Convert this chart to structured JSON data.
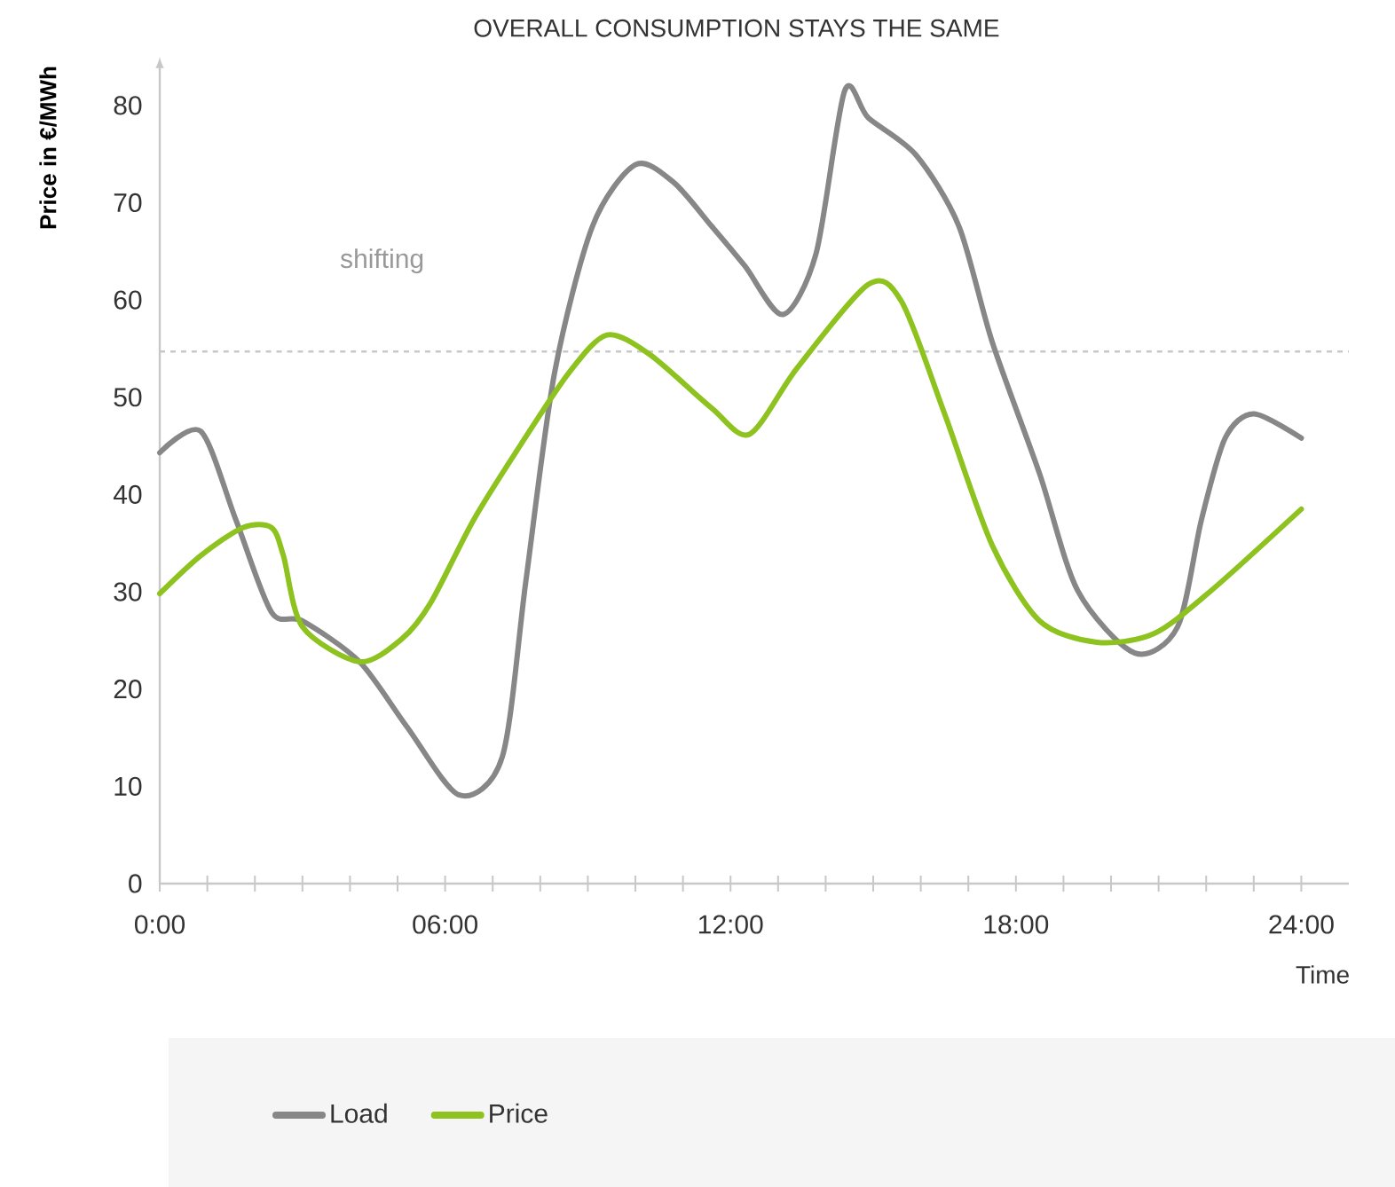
{
  "chart_data": {
    "type": "line",
    "title": "OVERALL CONSUMPTION STAYS THE SAME",
    "xlabel": "Time",
    "ylabel": "Price in €/MWh",
    "annotations": [
      "shifting"
    ],
    "xlim": [
      0,
      25
    ],
    "ylim": [
      0,
      85
    ],
    "xticks": [
      {
        "value": 0,
        "label": "0:00"
      },
      {
        "value": 1,
        "label": null
      },
      {
        "value": 2,
        "label": null
      },
      {
        "value": 3,
        "label": null
      },
      {
        "value": 4,
        "label": null
      },
      {
        "value": 5,
        "label": null
      },
      {
        "value": 6,
        "label": "06:00"
      },
      {
        "value": 7,
        "label": null
      },
      {
        "value": 8,
        "label": null
      },
      {
        "value": 9,
        "label": null
      },
      {
        "value": 10,
        "label": null
      },
      {
        "value": 11,
        "label": null
      },
      {
        "value": 12,
        "label": "12:00"
      },
      {
        "value": 13,
        "label": null
      },
      {
        "value": 14,
        "label": null
      },
      {
        "value": 15,
        "label": null
      },
      {
        "value": 16,
        "label": null
      },
      {
        "value": 17,
        "label": null
      },
      {
        "value": 18,
        "label": "18:00"
      },
      {
        "value": 19,
        "label": null
      },
      {
        "value": 20,
        "label": null
      },
      {
        "value": 21,
        "label": null
      },
      {
        "value": 22,
        "label": null
      },
      {
        "value": 23,
        "label": null
      },
      {
        "value": 24,
        "label": "24:00"
      }
    ],
    "yticks": [
      0,
      10,
      20,
      30,
      40,
      50,
      60,
      70,
      80
    ],
    "legend": "bottom",
    "ref_lines": [
      {
        "axis": "y",
        "value": 54.7,
        "color": "#c8c8c8",
        "line_style": "dashed"
      }
    ],
    "series": [
      {
        "name": "Load",
        "color": "#878787",
        "x": [
          0,
          0.86,
          1.6,
          2.35,
          3.0,
          4.2,
          5.2,
          6.3,
          7.2,
          7.7,
          8.3,
          9.1,
          10.0,
          10.8,
          11.6,
          12.3,
          13.1,
          13.8,
          14.4,
          14.9,
          15.9,
          16.8,
          17.5,
          18.5,
          19.3,
          20.5,
          21.4,
          21.9,
          22.4,
          23.0,
          24
        ],
        "values": [
          44.3,
          46.5,
          37.4,
          27.9,
          27.0,
          22.8,
          16.1,
          9.1,
          13.0,
          31.2,
          52.5,
          67.6,
          73.9,
          72.1,
          67.6,
          63.5,
          58.5,
          64.8,
          81.5,
          78.7,
          74.9,
          67.6,
          55.7,
          42.1,
          30.1,
          23.7,
          26.4,
          37.4,
          45.8,
          48.3,
          45.8
        ]
      },
      {
        "name": "Price",
        "color": "#8dc21f",
        "x": [
          0,
          0.86,
          1.75,
          2.35,
          2.6,
          3.0,
          4.2,
          5.1,
          5.7,
          6.6,
          7.6,
          8.6,
          9.4,
          10.3,
          11.6,
          12.4,
          13.4,
          14.9,
          15.6,
          16.5,
          17.5,
          18.5,
          19.7,
          20.9,
          22.1,
          24
        ],
        "values": [
          29.8,
          33.7,
          36.6,
          36.6,
          33.7,
          26.4,
          22.8,
          25.2,
          28.9,
          37.4,
          45.2,
          52.5,
          56.4,
          54.4,
          48.9,
          46.2,
          53.0,
          61.6,
          59.8,
          48.3,
          34.8,
          27.0,
          24.8,
          25.7,
          30.1,
          38.5
        ]
      }
    ]
  }
}
